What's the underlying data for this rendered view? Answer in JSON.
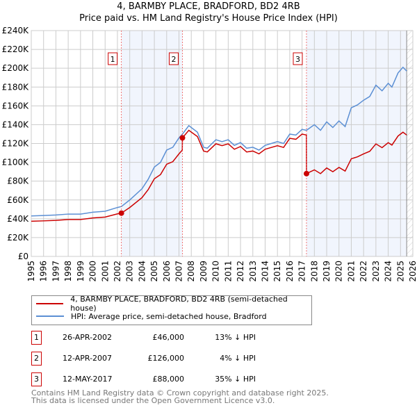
{
  "header": {
    "title": "4, BARMBY PLACE, BRADFORD, BD2 4RB",
    "subtitle": "Price paid vs. HM Land Registry's House Price Index (HPI)"
  },
  "chart_data": {
    "type": "line",
    "title": "4, BARMBY PLACE, BRADFORD, BD2 4RB",
    "subtitle": "Price paid vs. HM Land Registry's House Price Index (HPI)",
    "xlim": [
      1995,
      2026
    ],
    "ylim": [
      0,
      240000
    ],
    "x_ticks": [
      1995,
      1996,
      1997,
      1998,
      1999,
      2000,
      2001,
      2002,
      2003,
      2004,
      2005,
      2006,
      2007,
      2008,
      2009,
      2010,
      2011,
      2012,
      2013,
      2014,
      2015,
      2016,
      2017,
      2018,
      2019,
      2020,
      2021,
      2022,
      2023,
      2024,
      2025,
      2026
    ],
    "y_ticks": [
      {
        "v": 0,
        "label": "£0"
      },
      {
        "v": 20000,
        "label": "£20K"
      },
      {
        "v": 40000,
        "label": "£40K"
      },
      {
        "v": 60000,
        "label": "£60K"
      },
      {
        "v": 80000,
        "label": "£80K"
      },
      {
        "v": 100000,
        "label": "£100K"
      },
      {
        "v": 120000,
        "label": "£120K"
      },
      {
        "v": 140000,
        "label": "£140K"
      },
      {
        "v": 160000,
        "label": "£160K"
      },
      {
        "v": 180000,
        "label": "£180K"
      },
      {
        "v": 200000,
        "label": "£200K"
      },
      {
        "v": 220000,
        "label": "£220K"
      },
      {
        "v": 240000,
        "label": "£240K"
      }
    ],
    "grid": true,
    "series": [
      {
        "name": "4, BARMBY PLACE, BRADFORD, BD2 4RB (semi-detached house)",
        "color": "#cc0000",
        "x": [
          1995,
          1996,
          1997,
          1998,
          1999,
          2000,
          2001,
          2002,
          2002.32,
          2003,
          2004,
          2004.5,
          2005,
          2005.5,
          2006,
          2006.5,
          2007,
          2007.27,
          2007.28,
          2007.8,
          2008.5,
          2009,
          2009.3,
          2010,
          2010.5,
          2011,
          2011.5,
          2012,
          2012.5,
          2013,
          2013.5,
          2014,
          2014.5,
          2015,
          2015.5,
          2016,
          2016.5,
          2017,
          2017.35,
          2017.36,
          2018,
          2018.5,
          2019,
          2019.5,
          2020,
          2020.5,
          2021,
          2021.5,
          2022,
          2022.5,
          2023,
          2023.5,
          2024,
          2024.3,
          2024.8,
          2025.2,
          2025.5
        ],
        "y": [
          37400,
          37800,
          38300,
          39200,
          39200,
          40900,
          41800,
          45200,
          46000,
          52000,
          62500,
          71000,
          82500,
          87000,
          98000,
          100700,
          109000,
          113000,
          126000,
          134000,
          127400,
          112000,
          111000,
          119700,
          117700,
          119700,
          113900,
          116800,
          111000,
          112000,
          109000,
          113900,
          115800,
          117700,
          115800,
          125500,
          124500,
          130000,
          129000,
          88000,
          92000,
          88000,
          94000,
          90000,
          94600,
          90700,
          103800,
          105800,
          109000,
          111700,
          119600,
          115600,
          120900,
          118300,
          128000,
          132000,
          129000
        ]
      },
      {
        "name": "HPI: Average price, semi-detached house, Bradford",
        "color": "#5b8fd4",
        "x": [
          1995,
          1996,
          1997,
          1998,
          1999,
          2000,
          2001,
          2002,
          2002.32,
          2003,
          2004,
          2004.5,
          2005,
          2005.5,
          2006,
          2006.5,
          2007,
          2007.28,
          2007.8,
          2008.5,
          2009,
          2009.3,
          2010,
          2010.5,
          2011,
          2011.5,
          2012,
          2012.5,
          2013,
          2013.5,
          2014,
          2014.5,
          2015,
          2015.5,
          2016,
          2016.5,
          2017,
          2017.36,
          2018,
          2018.5,
          2019,
          2019.5,
          2020,
          2020.5,
          2021,
          2021.5,
          2022,
          2022.5,
          2023,
          2023.5,
          2024,
          2024.3,
          2024.8,
          2025.2,
          2025.5
        ],
        "y": [
          43000,
          43500,
          44000,
          45000,
          45000,
          47000,
          48000,
          52000,
          53000,
          60000,
          72000,
          82000,
          95000,
          100000,
          113000,
          116000,
          126000,
          130000,
          139000,
          132000,
          116000,
          115000,
          124000,
          122000,
          124000,
          118000,
          121000,
          115000,
          116000,
          113000,
          118000,
          120000,
          122000,
          120000,
          130000,
          129000,
          135000,
          134000,
          140000,
          134000,
          143000,
          137000,
          144000,
          138000,
          158000,
          161000,
          166000,
          170000,
          182000,
          176000,
          184000,
          180000,
          195000,
          201000,
          197000
        ]
      }
    ],
    "sales": [
      {
        "id": "1",
        "x": 2002.32,
        "y": 46000
      },
      {
        "id": "2",
        "x": 2007.28,
        "y": 126000
      },
      {
        "id": "3",
        "x": 2017.36,
        "y": 88000
      }
    ],
    "shaded_ranges": [
      [
        2002.32,
        2007.28
      ],
      [
        2017.36,
        2025.5
      ]
    ],
    "hatched_from": 2025.5,
    "legend": "below"
  },
  "legend": {
    "items": [
      "4, BARMBY PLACE, BRADFORD, BD2 4RB (semi-detached house)",
      "HPI: Average price, semi-detached house, Bradford"
    ]
  },
  "transactions": [
    {
      "id": "1",
      "date": "26-APR-2002",
      "price": "£46,000",
      "hpi": "13% ↓ HPI"
    },
    {
      "id": "2",
      "date": "12-APR-2007",
      "price": "£126,000",
      "hpi": "4% ↓ HPI"
    },
    {
      "id": "3",
      "date": "12-MAY-2017",
      "price": "£88,000",
      "hpi": "35% ↓ HPI"
    }
  ],
  "footer": {
    "line1": "Contains HM Land Registry data © Crown copyright and database right 2025.",
    "line2": "This data is licensed under the Open Government Licence v3.0."
  }
}
